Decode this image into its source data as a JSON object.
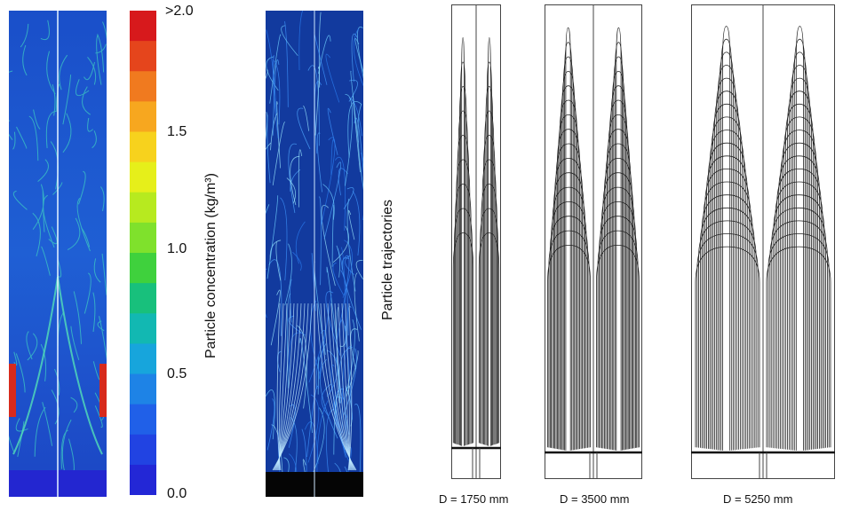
{
  "colorbar": {
    "label": "Particle concentration (kg/m³)",
    "ticks": [
      ">2.0",
      "1.5",
      "1.0",
      "0.5",
      "0.0"
    ],
    "colors": [
      "#d7191c",
      "#e5451c",
      "#f07a1f",
      "#f7a71f",
      "#f7d21d",
      "#e6ef1a",
      "#b7ea1f",
      "#7fe12c",
      "#3fd13d",
      "#18c07c",
      "#12b8b2",
      "#17a5dc",
      "#1e83e6",
      "#2060e8",
      "#2143e2",
      "#2327d6"
    ]
  },
  "trajectories": {
    "label": "Particle trajectories"
  },
  "contours": [
    {
      "label": "D = 1750 mm"
    },
    {
      "label": "D = 3500 mm"
    },
    {
      "label": "D = 5250 mm"
    }
  ]
}
